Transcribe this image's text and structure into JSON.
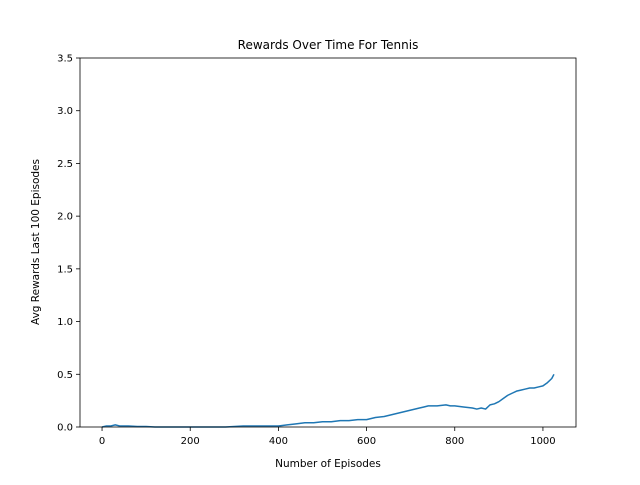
{
  "chart_data": {
    "type": "line",
    "title": "Rewards Over Time For Tennis",
    "xlabel": "Number of Episodes",
    "ylabel": "Avg Rewards Last 100 Episodes",
    "xlim": [
      -50,
      1075
    ],
    "ylim": [
      0,
      3.5
    ],
    "x_ticks": [
      0,
      200,
      400,
      600,
      800,
      1000
    ],
    "x_tick_labels": [
      "0",
      "200",
      "400",
      "600",
      "800",
      "1000"
    ],
    "y_ticks": [
      0.0,
      0.5,
      1.0,
      1.5,
      2.0,
      2.5,
      3.0,
      3.5
    ],
    "y_tick_labels": [
      "0.0",
      "0.5",
      "1.0",
      "1.5",
      "2.0",
      "2.5",
      "3.0",
      "3.5"
    ],
    "grid": false,
    "legend": "none",
    "series": [
      {
        "color": "#1f77b4",
        "x": [
          0,
          10,
          20,
          30,
          40,
          60,
          80,
          100,
          120,
          140,
          160,
          180,
          200,
          220,
          240,
          260,
          280,
          300,
          320,
          340,
          360,
          380,
          400,
          420,
          440,
          460,
          480,
          500,
          520,
          540,
          560,
          580,
          600,
          620,
          640,
          660,
          680,
          700,
          720,
          730,
          740,
          760,
          780,
          790,
          800,
          820,
          840,
          850,
          860,
          870,
          880,
          890,
          900,
          910,
          920,
          930,
          940,
          950,
          960,
          970,
          980,
          990,
          1000,
          1010,
          1020,
          1025
        ],
        "y": [
          0.0,
          0.01,
          0.01,
          0.02,
          0.01,
          0.01,
          0.005,
          0.005,
          0.0,
          0.0,
          0.0,
          0.0,
          0.0,
          0.0,
          0.0,
          0.0,
          0.0,
          0.005,
          0.01,
          0.01,
          0.01,
          0.01,
          0.01,
          0.02,
          0.03,
          0.04,
          0.04,
          0.05,
          0.05,
          0.06,
          0.06,
          0.07,
          0.07,
          0.09,
          0.1,
          0.12,
          0.14,
          0.16,
          0.18,
          0.19,
          0.2,
          0.2,
          0.21,
          0.2,
          0.2,
          0.19,
          0.18,
          0.17,
          0.18,
          0.17,
          0.21,
          0.22,
          0.24,
          0.27,
          0.3,
          0.32,
          0.34,
          0.35,
          0.36,
          0.37,
          0.37,
          0.38,
          0.39,
          0.42,
          0.46,
          0.5
        ]
      }
    ]
  }
}
